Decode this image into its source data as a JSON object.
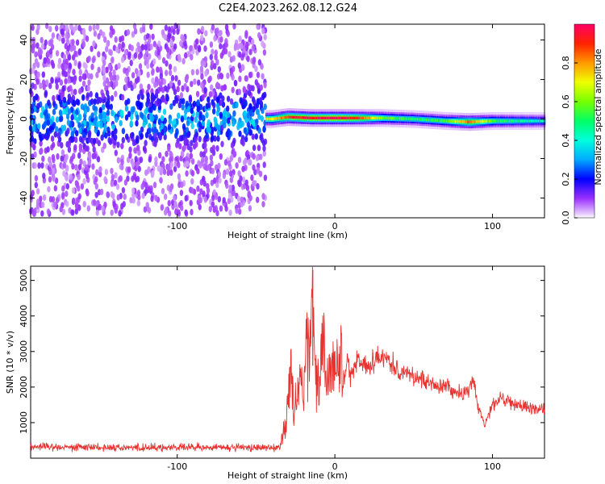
{
  "figure": {
    "title": "C2E4.2023.262.08.12.G24"
  },
  "chart_data": [
    {
      "type": "heatmap",
      "title": "C2E4.2023.262.08.12.G24",
      "xlabel": "Height of straight line (km)",
      "ylabel": "Frequency (Hz)",
      "xlim": [
        -193,
        133
      ],
      "ylim": [
        -50,
        48
      ],
      "x_ticks": [
        -100,
        0,
        100
      ],
      "y_ticks": [
        -40,
        -20,
        0,
        20,
        40
      ],
      "x_tick_labels": [
        "-100",
        "0",
        "100"
      ],
      "y_tick_labels": [
        "-40",
        "-20",
        "0",
        "20",
        "40"
      ],
      "grid": false,
      "colorbar": {
        "label": "Normalized spectral amplitude",
        "range": [
          0,
          1
        ],
        "ticks": [
          0,
          0.2,
          0.4,
          0.6,
          0.8
        ],
        "tick_labels": [
          "0.0",
          "0.2",
          "0.4",
          "0.6",
          "0.8"
        ],
        "colormap": "hsv-rainbow"
      },
      "regions": [
        {
          "x_range": [
            -193,
            -44
          ],
          "frequency_center": 0,
          "frequency_spread": 48,
          "amplitude": "noise",
          "peak_normalized_amplitude": 0.3
        },
        {
          "x_range": [
            -44,
            133
          ],
          "frequency_center": 0,
          "frequency_spread": 3,
          "amplitude": "coherent",
          "peak_normalized_amplitude": 1.0
        }
      ],
      "ridge": [
        {
          "x": -40,
          "y": 0,
          "z": 0.7
        },
        {
          "x": -30,
          "y": 1,
          "z": 0.9
        },
        {
          "x": -15,
          "y": 0.5,
          "z": 0.95
        },
        {
          "x": 0,
          "y": 0.5,
          "z": 1.0
        },
        {
          "x": 15,
          "y": 0.5,
          "z": 0.9
        },
        {
          "x": 30,
          "y": 0.5,
          "z": 0.6
        },
        {
          "x": 50,
          "y": 0,
          "z": 0.5
        },
        {
          "x": 70,
          "y": -1,
          "z": 0.55
        },
        {
          "x": 85,
          "y": -1.5,
          "z": 0.85
        },
        {
          "x": 100,
          "y": -1,
          "z": 0.55
        },
        {
          "x": 120,
          "y": -1,
          "z": 0.45
        },
        {
          "x": 133,
          "y": -1,
          "z": 0.4
        }
      ]
    },
    {
      "type": "line",
      "xlabel": "Height of straight line (km)",
      "ylabel": "SNR (10 * v/v)",
      "xlim": [
        -193,
        133
      ],
      "ylim": [
        0,
        5400
      ],
      "x_ticks": [
        -100,
        0,
        100
      ],
      "y_ticks": [
        1000,
        2000,
        3000,
        4000,
        5000
      ],
      "x_tick_labels": [
        "-100",
        "0",
        "100"
      ],
      "y_tick_labels": [
        "1000",
        "2000",
        "3000",
        "4000",
        "5000"
      ],
      "grid": false,
      "color": "#e8322f",
      "series": [
        {
          "x": [
            -193,
            -170,
            -150,
            -130,
            -110,
            -90,
            -70,
            -50,
            -35,
            -32,
            -30,
            -28,
            -26,
            -24,
            -22,
            -20,
            -18,
            -16,
            -15,
            -14,
            -13,
            -12,
            -10,
            -8,
            -5,
            -2,
            0,
            3,
            5,
            8,
            10,
            15,
            20,
            25,
            30,
            35,
            40,
            45,
            50,
            60,
            70,
            80,
            85,
            88,
            90,
            93,
            95,
            97,
            100,
            105,
            110,
            115,
            120,
            125,
            133
          ],
          "y": [
            330,
            320,
            310,
            300,
            300,
            300,
            300,
            300,
            310,
            900,
            1300,
            2800,
            1000,
            1900,
            2600,
            1500,
            3200,
            2200,
            4300,
            5300,
            3000,
            2400,
            1800,
            3600,
            2000,
            2700,
            2400,
            3200,
            2000,
            2700,
            2300,
            2800,
            2600,
            2800,
            2900,
            2700,
            2500,
            2400,
            2300,
            2100,
            2000,
            1800,
            1900,
            2200,
            1600,
            1200,
            900,
            1200,
            1500,
            1700,
            1600,
            1500,
            1450,
            1400,
            1350
          ]
        }
      ]
    }
  ]
}
